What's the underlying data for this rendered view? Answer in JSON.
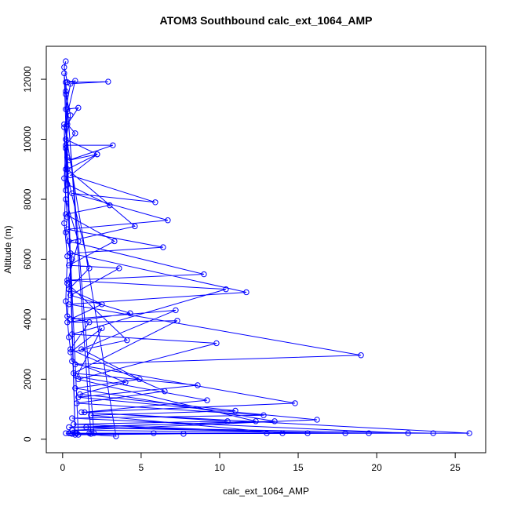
{
  "chart_data": {
    "type": "line",
    "title": "ATOM3 Southbound calc_ext_1064_AMP",
    "x_label": "calc_ext_1064_AMP",
    "y_label": "Altitude (m)",
    "xlim": [
      -1.04,
      26.94
    ],
    "ylim": [
      -450,
      13100
    ],
    "xticks": [
      0,
      5,
      10,
      15,
      20,
      25
    ],
    "yticks": [
      0,
      2000,
      4000,
      6000,
      8000,
      10000,
      12000
    ],
    "series": [
      {
        "name": "calc_ext_1064_AMP",
        "color": "#0000ff",
        "x": [
          0.2,
          0.1,
          0.3,
          2.9,
          0.5,
          0.2,
          1.0,
          0.3,
          0.8,
          0.2,
          3.2,
          0.4,
          2.2,
          0.5,
          5.9,
          0.6,
          6.7,
          0.3,
          6.4,
          0.5,
          11.7,
          0.4,
          19.0,
          0.8,
          14.8,
          1.2,
          25.9,
          0.5,
          0.8,
          0.1,
          0.2,
          0.5,
          0.2,
          2.2,
          0.3,
          4.6,
          0.4,
          9.0,
          0.3,
          10.4,
          0.6,
          9.8,
          1.0,
          12.3,
          1.5,
          23.6,
          0.9,
          1.8,
          0.2,
          0.8,
          0.1,
          0.3,
          3.0,
          0.2,
          3.3,
          0.4,
          3.6,
          0.5,
          4.3,
          0.3,
          7.3,
          0.7,
          8.6,
          1.0,
          16.2,
          0.6,
          19.5,
          2.0,
          0.3,
          0.2,
          1.7,
          0.4,
          2.5,
          0.5,
          7.2,
          1.2,
          4.9,
          0.8,
          13.5,
          0.4,
          18.0,
          0.2,
          3.4,
          0.1,
          0.2,
          1.0,
          0.3,
          4.1,
          0.5,
          2.5,
          0.9,
          9.2,
          1.4,
          10.5,
          0.7,
          15.6,
          0.4,
          7.7,
          1.0,
          0.2,
          0.1,
          0.3,
          0.2,
          0.6,
          0.4,
          0.3,
          1.7,
          0.5,
          6.5,
          0.9,
          12.8,
          0.6,
          22.0,
          0.6,
          13.0,
          0.8,
          0.2,
          0.3,
          0.2,
          0.1,
          0.3,
          0.2,
          0.4,
          0.6,
          4.0,
          1.1,
          11.0,
          1.8,
          14.0,
          0.5,
          5.8,
          1.7
        ],
        "values": [
          12600,
          12400,
          11900,
          11920,
          11850,
          11000,
          11050,
          10500,
          10200,
          9800,
          9800,
          9300,
          9500,
          8800,
          7900,
          8200,
          7300,
          7000,
          6400,
          6200,
          4900,
          4500,
          2800,
          2500,
          1200,
          900,
          200,
          200,
          150,
          12200,
          11500,
          10800,
          10000,
          9500,
          9000,
          7100,
          6600,
          5500,
          5300,
          5000,
          3500,
          3200,
          2000,
          600,
          400,
          200,
          200,
          180,
          11900,
          11950,
          10400,
          8500,
          7800,
          7500,
          6600,
          5800,
          5700,
          4800,
          4200,
          3900,
          3950,
          2200,
          1800,
          1400,
          650,
          300,
          200,
          200,
          11000,
          9000,
          5700,
          5000,
          4500,
          4000,
          4300,
          3000,
          2000,
          1700,
          600,
          400,
          200,
          200,
          100,
          10500,
          8000,
          6600,
          5200,
          3300,
          2900,
          3700,
          2100,
          1300,
          900,
          600,
          500,
          200,
          200,
          180,
          150,
          9700,
          8700,
          7400,
          6900,
          6000,
          5000,
          4100,
          3900,
          3000,
          1600,
          1200,
          800,
          700,
          200,
          180,
          200,
          200,
          11600,
          9400,
          8300,
          7200,
          6100,
          4600,
          3400,
          2600,
          1900,
          1500,
          950,
          800,
          200,
          200,
          200,
          200
        ]
      }
    ]
  }
}
